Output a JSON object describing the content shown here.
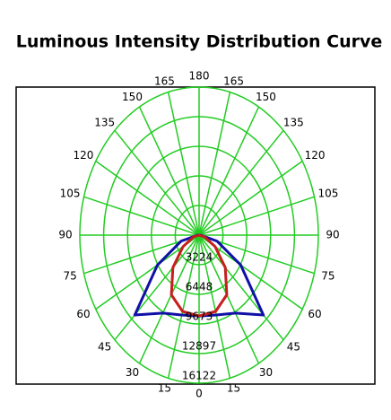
{
  "chart_data": {
    "type": "polar",
    "title": "Luminous Intensity Distribution Curve",
    "x": [
      -90,
      -75,
      -60,
      -45,
      -30,
      -15,
      0,
      15,
      30,
      45,
      60,
      75,
      90
    ],
    "series": [
      {
        "color": "#1010a8",
        "values": [
          200,
          2500,
          6500,
          12300,
          9800,
          9000,
          8800,
          9000,
          9800,
          12300,
          6500,
          2500,
          200
        ]
      },
      {
        "color": "#c81e1e",
        "values": [
          0,
          800,
          2500,
          5000,
          7500,
          8600,
          8800,
          8600,
          7500,
          5000,
          2500,
          800,
          0
        ]
      }
    ],
    "xticks": [
      0,
      15,
      30,
      45,
      60,
      75,
      90,
      105,
      120,
      135,
      150,
      165,
      180
    ],
    "ylim": [
      0,
      16122
    ],
    "yticks": [
      3224,
      6448,
      9673,
      12897,
      16122
    ],
    "grid": true,
    "grid_color": "#22cc22"
  }
}
